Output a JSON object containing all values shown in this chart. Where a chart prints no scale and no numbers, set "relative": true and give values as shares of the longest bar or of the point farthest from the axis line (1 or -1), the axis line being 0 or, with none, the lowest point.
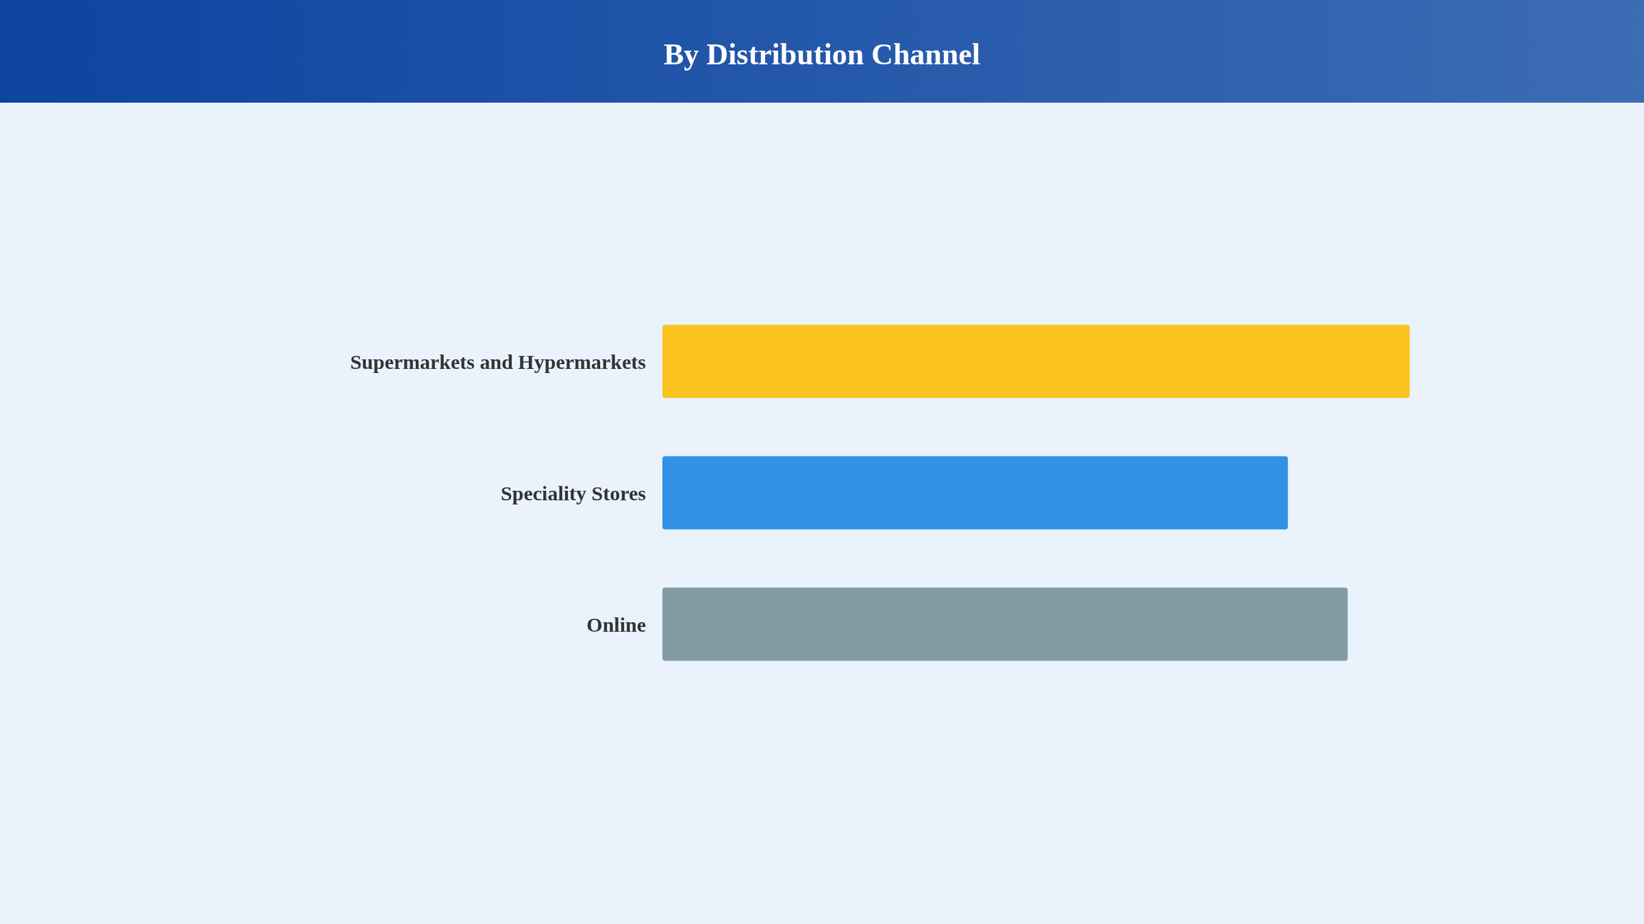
{
  "chart_data": {
    "type": "bar",
    "title": "By Distribution Channel",
    "orientation": "horizontal",
    "relative": true,
    "categories": [
      "Supermarkets and Hypermarkets",
      "Speciality Stores",
      "Online"
    ],
    "values": [
      1,
      0.837,
      0.917
    ],
    "colors": [
      "#fcc41f",
      "#3191e6",
      "#839ba5"
    ]
  }
}
